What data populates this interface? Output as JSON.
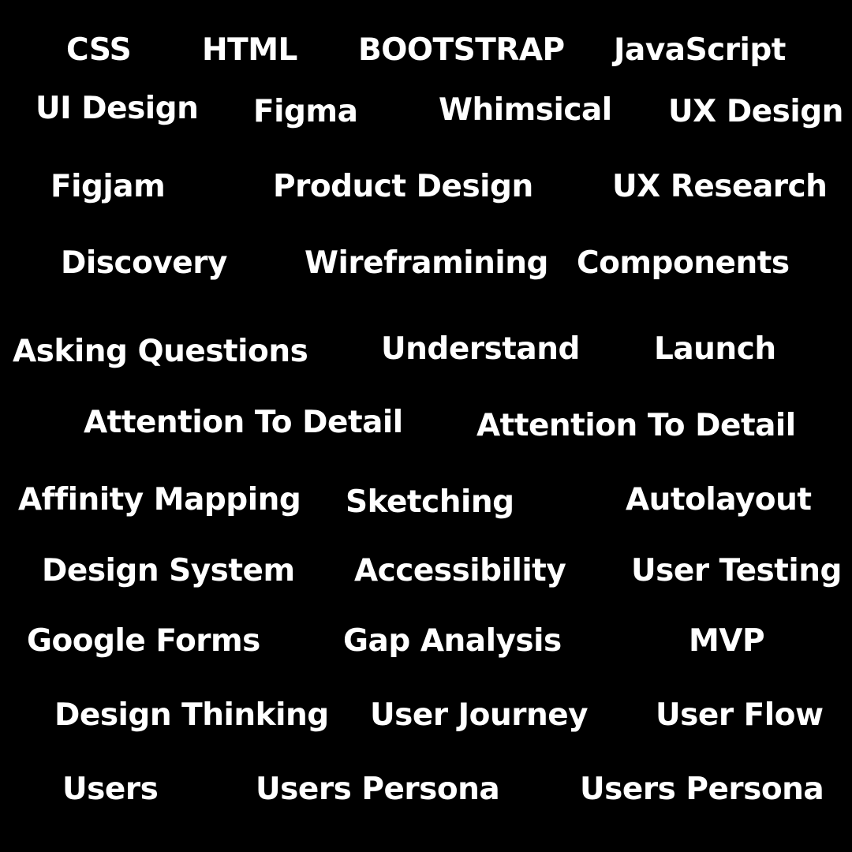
{
  "words": [
    "CSS",
    "HTML",
    "BOOTSTRAP",
    "JavaScript",
    "UI Design",
    "Figma",
    "Whimsical",
    "UX Design",
    "Figjam",
    "Product Design",
    "UX Research",
    "Discovery",
    "Wireframining",
    "Components",
    "Asking Questions",
    "Understand",
    "Launch",
    "Attention To Detail",
    "Attention To Detail",
    "Affinity Mapping",
    "Sketching",
    "Autolayout",
    "Design System",
    "Accessibility",
    "User Testing",
    "Google Forms",
    "Gap Analysis",
    "MVP",
    "Design Thinking",
    "User Journey",
    "User Flow",
    "Users",
    "Users Persona",
    "Users Persona"
  ],
  "colors": {
    "background": "#000000",
    "text": "#ffffff"
  }
}
